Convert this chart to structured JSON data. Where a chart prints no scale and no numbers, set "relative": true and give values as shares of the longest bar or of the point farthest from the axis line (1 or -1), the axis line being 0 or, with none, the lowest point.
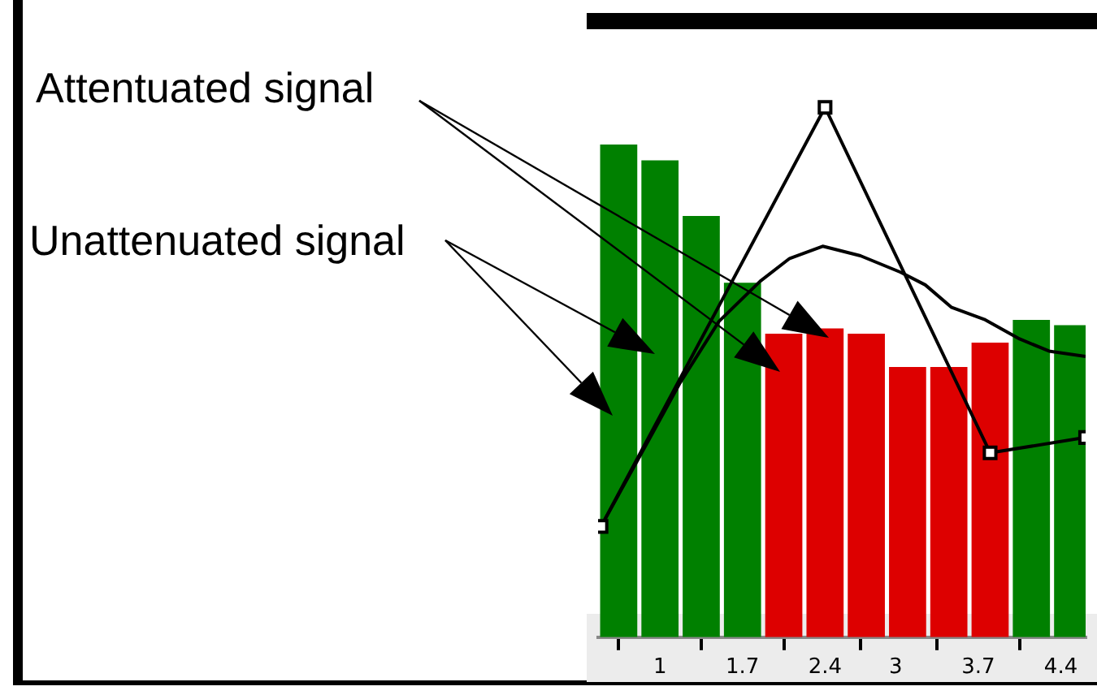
{
  "chart_data": {
    "type": "bar",
    "relative": true,
    "legend": false,
    "grid": false,
    "xlim": [
      0.475,
      4.61
    ],
    "xticks": [
      1,
      1.7,
      2.4,
      3,
      3.7,
      4.4
    ],
    "annotations": [
      "Attentuated signal",
      "Unattenuated signal"
    ],
    "series": [
      {
        "x": [
          0.65,
          1,
          1.35,
          1.7,
          2.05,
          2.4,
          2.75,
          3.1,
          3.45,
          3.8,
          4.15,
          4.5
        ],
        "colors": [
          "#008000",
          "#008000",
          "#008000",
          "#008000",
          "#dd0000",
          "#dd0000",
          "#dd0000",
          "#dd0000",
          "#dd0000",
          "#dd0000",
          "#008000",
          "#008000"
        ],
        "values": [
          0.93,
          0.9,
          0.795,
          0.669,
          0.573,
          0.583,
          0.573,
          0.51,
          0.51,
          0.556,
          0.599,
          0.589
        ]
      },
      {
        "type": "line",
        "color": "#000000",
        "marker": "square",
        "x": [
          0.5,
          2.4,
          3.8,
          4.61
        ],
        "values": [
          0.209,
          1,
          0.348,
          0.377
        ]
      },
      {
        "type": "line",
        "color": "#000000",
        "marker": "none",
        "x": [
          0.5,
          0.9,
          1.17,
          1.5,
          1.85,
          2.1,
          2.38,
          2.7,
          3.04,
          3.25,
          3.47,
          3.75,
          4.05,
          4.3,
          4.61
        ],
        "values": [
          0.209,
          0.37,
          0.48,
          0.596,
          0.672,
          0.715,
          0.738,
          0.72,
          0.689,
          0.665,
          0.623,
          0.6,
          0.563,
          0.54,
          0.53
        ]
      }
    ]
  }
}
